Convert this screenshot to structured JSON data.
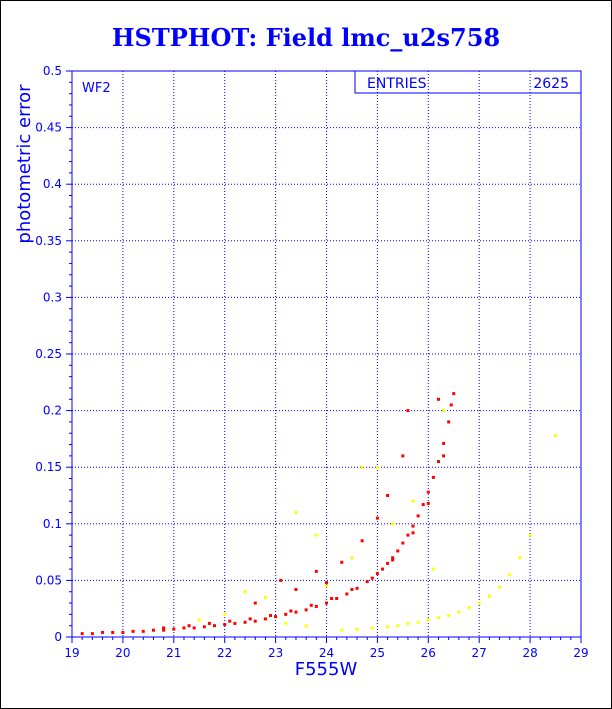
{
  "chart_data": {
    "type": "scatter",
    "title": "HSTPHOT: Field lmc_u2s758",
    "panel_label": "WF2",
    "xlabel": "F555W",
    "ylabel": "photometric error",
    "xlim": [
      19,
      29
    ],
    "ylim": [
      0,
      0.5
    ],
    "x_ticks": [
      "19",
      "20",
      "21",
      "22",
      "23",
      "24",
      "25",
      "26",
      "27",
      "28",
      "29"
    ],
    "y_ticks": [
      "0",
      "0.05",
      "0.1",
      "0.15",
      "0.2",
      "0.25",
      "0.3",
      "0.35",
      "0.4",
      "0.45",
      "0.5"
    ],
    "grid": true,
    "stats_box": {
      "label": "ENTRIES",
      "value": "2625"
    },
    "colors": {
      "axes": "#0000ff",
      "primary": "#ff0000",
      "secondary": "#ffff00",
      "background": "#ffffff"
    },
    "series": [
      {
        "color": "#ff0000",
        "points": [
          [
            19.2,
            0.003
          ],
          [
            19.4,
            0.003
          ],
          [
            19.6,
            0.004
          ],
          [
            19.8,
            0.004
          ],
          [
            20.0,
            0.004
          ],
          [
            20.2,
            0.005
          ],
          [
            20.4,
            0.005
          ],
          [
            20.6,
            0.006
          ],
          [
            20.8,
            0.006
          ],
          [
            21.0,
            0.007
          ],
          [
            21.2,
            0.008
          ],
          [
            21.4,
            0.008
          ],
          [
            21.6,
            0.009
          ],
          [
            21.8,
            0.01
          ],
          [
            22.0,
            0.011
          ],
          [
            22.2,
            0.012
          ],
          [
            22.4,
            0.013
          ],
          [
            22.6,
            0.014
          ],
          [
            22.8,
            0.016
          ],
          [
            23.0,
            0.018
          ],
          [
            23.2,
            0.02
          ],
          [
            23.4,
            0.022
          ],
          [
            23.6,
            0.024
          ],
          [
            23.8,
            0.027
          ],
          [
            24.0,
            0.03
          ],
          [
            24.2,
            0.034
          ],
          [
            24.4,
            0.038
          ],
          [
            24.6,
            0.043
          ],
          [
            24.8,
            0.049
          ],
          [
            25.0,
            0.056
          ],
          [
            25.1,
            0.06
          ],
          [
            25.2,
            0.065
          ],
          [
            25.3,
            0.07
          ],
          [
            25.4,
            0.076
          ],
          [
            25.5,
            0.083
          ],
          [
            25.6,
            0.09
          ],
          [
            25.7,
            0.098
          ],
          [
            25.8,
            0.107
          ],
          [
            25.9,
            0.117
          ],
          [
            26.0,
            0.128
          ],
          [
            26.1,
            0.141
          ],
          [
            26.2,
            0.155
          ],
          [
            26.3,
            0.171
          ],
          [
            26.4,
            0.19
          ],
          [
            26.5,
            0.215
          ],
          [
            20.8,
            0.008
          ],
          [
            21.3,
            0.01
          ],
          [
            21.7,
            0.012
          ],
          [
            22.1,
            0.014
          ],
          [
            22.5,
            0.016
          ],
          [
            22.9,
            0.019
          ],
          [
            23.3,
            0.023
          ],
          [
            23.7,
            0.028
          ],
          [
            24.1,
            0.034
          ],
          [
            24.5,
            0.042
          ],
          [
            24.9,
            0.052
          ],
          [
            25.3,
            0.068
          ],
          [
            25.7,
            0.092
          ],
          [
            26.0,
            0.118
          ],
          [
            26.3,
            0.16
          ],
          [
            26.45,
            0.205
          ],
          [
            23.1,
            0.05
          ],
          [
            23.8,
            0.058
          ],
          [
            24.3,
            0.066
          ],
          [
            24.7,
            0.085
          ],
          [
            25.0,
            0.105
          ],
          [
            25.2,
            0.125
          ],
          [
            25.5,
            0.16
          ],
          [
            25.6,
            0.2
          ],
          [
            26.2,
            0.21
          ],
          [
            22.6,
            0.03
          ],
          [
            23.4,
            0.042
          ],
          [
            24.0,
            0.048
          ]
        ]
      },
      {
        "color": "#ffff00",
        "points": [
          [
            24.3,
            0.006
          ],
          [
            24.6,
            0.007
          ],
          [
            24.9,
            0.008
          ],
          [
            25.2,
            0.009
          ],
          [
            25.4,
            0.01
          ],
          [
            25.6,
            0.012
          ],
          [
            25.8,
            0.013
          ],
          [
            26.0,
            0.015
          ],
          [
            26.2,
            0.017
          ],
          [
            26.4,
            0.019
          ],
          [
            26.6,
            0.022
          ],
          [
            26.8,
            0.026
          ],
          [
            27.0,
            0.03
          ],
          [
            27.2,
            0.036
          ],
          [
            27.4,
            0.044
          ],
          [
            27.6,
            0.055
          ],
          [
            27.8,
            0.07
          ],
          [
            28.0,
            0.09
          ],
          [
            28.5,
            0.178
          ],
          [
            22.0,
            0.02
          ],
          [
            22.8,
            0.035
          ],
          [
            23.2,
            0.012
          ],
          [
            23.6,
            0.01
          ],
          [
            24.0,
            0.045
          ],
          [
            24.5,
            0.07
          ],
          [
            25.0,
            0.15
          ],
          [
            25.3,
            0.1
          ],
          [
            25.7,
            0.12
          ],
          [
            26.1,
            0.06
          ],
          [
            26.3,
            0.2
          ],
          [
            23.4,
            0.11
          ],
          [
            24.7,
            0.15
          ],
          [
            21.5,
            0.015
          ],
          [
            22.4,
            0.04
          ],
          [
            23.8,
            0.09
          ]
        ]
      }
    ]
  }
}
